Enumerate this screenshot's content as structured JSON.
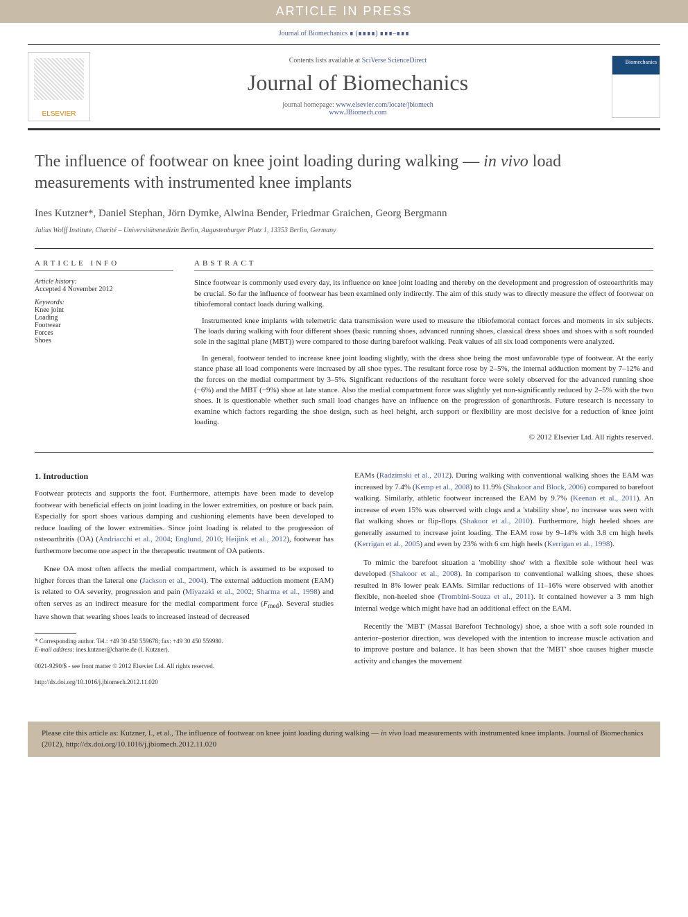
{
  "banner": "ARTICLE IN PRESS",
  "journal_ref": "Journal of Biomechanics ∎ (∎∎∎∎) ∎∎∎–∎∎∎",
  "masthead": {
    "contents_prefix": "Contents lists available at ",
    "contents_link": "SciVerse ScienceDirect",
    "journal_title": "Journal of Biomechanics",
    "homepage_prefix": "journal homepage: ",
    "homepage_url1": "www.elsevier.com/locate/jbiomech",
    "homepage_url2": "www.JBiomech.com",
    "publisher": "ELSEVIER"
  },
  "title": "The influence of footwear on knee joint loading during walking — in vivo load measurements with instrumented knee implants",
  "authors": "Ines Kutzner*, Daniel Stephan, Jörn Dymke, Alwina Bender, Friedmar Graichen, Georg Bergmann",
  "affiliation": "Julius Wolff Institute, Charité – Universitätsmedizin Berlin, Augustenburger Platz 1, 13353 Berlin, Germany",
  "article_info": {
    "heading": "ARTICLE INFO",
    "history_label": "Article history:",
    "history_value": "Accepted 4 November 2012",
    "keywords_label": "Keywords:",
    "keywords": [
      "Knee joint",
      "Loading",
      "Footwear",
      "Forces",
      "Shoes"
    ]
  },
  "abstract": {
    "heading": "ABSTRACT",
    "paras": [
      "Since footwear is commonly used every day, its influence on knee joint loading and thereby on the development and progression of osteoarthritis may be crucial. So far the influence of footwear has been examined only indirectly. The aim of this study was to directly measure the effect of footwear on tibiofemoral contact loads during walking.",
      "Instrumented knee implants with telemetric data transmission were used to measure the tibiofemoral contact forces and moments in six subjects. The loads during walking with four different shoes (basic running shoes, advanced running shoes, classical dress shoes and shoes with a soft rounded sole in the sagittal plane (MBT)) were compared to those during barefoot walking. Peak values of all six load components were analyzed.",
      "In general, footwear tended to increase knee joint loading slightly, with the dress shoe being the most unfavorable type of footwear. At the early stance phase all load components were increased by all shoe types. The resultant force rose by 2–5%, the internal adduction moment by 7–12% and the forces on the medial compartment by 3–5%. Significant reductions of the resultant force were solely observed for the advanced running shoe (−6%) and the MBT (−9%) shoe at late stance. Also the medial compartment force was slightly yet non-significantly reduced by 2–5% with the two shoes. It is questionable whether such small load changes have an influence on the progression of gonarthrosis. Future research is necessary to examine which factors regarding the shoe design, such as heel height, arch support or flexibility are most decisive for a reduction of knee joint loading."
    ],
    "copyright": "© 2012 Elsevier Ltd. All rights reserved."
  },
  "body": {
    "section1_heading": "1. Introduction",
    "section1_paras": [
      "Footwear protects and supports the foot. Furthermore, attempts have been made to develop footwear with beneficial effects on joint loading in the lower extremities, on posture or back pain. Especially for sport shoes various damping and cushioning elements have been developed to reduce loading of the lower extremities. Since joint loading is related to the progression of osteoarthritis (OA) (Andriacchi et al., 2004; Englund, 2010; Heijink et al., 2012), footwear has furthermore become one aspect in the therapeutic treatment of OA patients.",
      "Knee OA most often affects the medial compartment, which is assumed to be exposed to higher forces than the lateral one (Jackson et al., 2004). The external adduction moment (EAM) is related to OA severity, progression and pain (Miyazaki et al., 2002; Sharma et al., 1998) and often serves as an indirect measure for the medial compartment force (Fmed). Several studies have shown that wearing shoes leads to increased instead of decreased",
      "EAMs (Radzimski et al., 2012). During walking with conventional walking shoes the EAM was increased by 7.4% (Kemp et al., 2008) to 11.9% (Shakoor and Block, 2006) compared to barefoot walking. Similarly, athletic footwear increased the EAM by 9.7% (Keenan et al., 2011). An increase of even 15% was observed with clogs and a 'stability shoe', no increase was seen with flat walking shoes or flip-flops (Shakoor et al., 2010). Furthermore, high heeled shoes are generally assumed to increase joint loading. The EAM rose by 9–14% with 3.8 cm high heels (Kerrigan et al., 2005) and even by 23% with 6 cm high heels (Kerrigan et al., 1998).",
      "To mimic the barefoot situation a 'mobility shoe' with a flexible sole without heel was developed (Shakoor et al., 2008). In comparison to conventional walking shoes, these shoes resulted in 8% lower peak EAMs. Similar reductions of 11–16% were observed with another flexible, non-heeled shoe (Trombini-Souza et al., 2011). It contained however a 3 mm high internal wedge which might have had an additional effect on the EAM.",
      "Recently the 'MBT' (Massai Barefoot Technology) shoe, a shoe with a soft sole rounded in anterior–posterior direction, was developed with the intention to increase muscle activation and to improve posture and balance. It has been shown that the 'MBT' shoe causes higher muscle activity and changes the movement"
    ]
  },
  "footnote": {
    "corresponding": "* Corresponding author. Tel.: +49 30 450 559678; fax: +49 30 450 559980.",
    "email_label": "E-mail address:",
    "email": "ines.kutzner@charite.de (I. Kutzner)."
  },
  "bottom": {
    "line1": "0021-9290/$ - see front matter © 2012 Elsevier Ltd. All rights reserved.",
    "line2": "http://dx.doi.org/10.1016/j.jbiomech.2012.11.020"
  },
  "cite_box": "Please cite this article as: Kutzner, I., et al., The influence of footwear on knee joint loading during walking — in vivo load measurements with instrumented knee implants. Journal of Biomechanics (2012), http://dx.doi.org/10.1016/j.jbiomech.2012.11.020",
  "colors": {
    "banner_bg": "#c8bba8",
    "link": "#4a5a9a",
    "orange": "#e98300",
    "text": "#2a2a2a"
  }
}
